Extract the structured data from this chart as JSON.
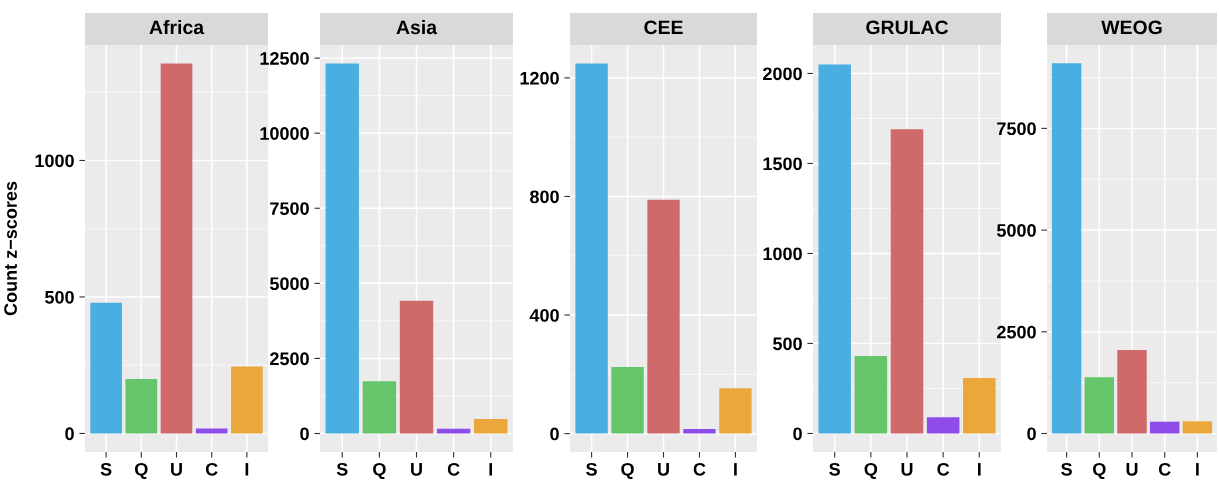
{
  "chart_data": [
    {
      "type": "bar",
      "title": "Africa",
      "ylabel": "Count z−scores",
      "categories": [
        "S",
        "Q",
        "U",
        "C",
        "I"
      ],
      "values": [
        479,
        199,
        1355,
        18,
        245
      ],
      "colors": [
        "#4aaee0",
        "#66c56a",
        "#d0696a",
        "#8e4de8",
        "#eba73b"
      ],
      "ylim": [
        -68,
        1423
      ],
      "yticks": [
        0,
        500,
        1000
      ],
      "grid": true
    },
    {
      "type": "bar",
      "title": "Asia",
      "categories": [
        "S",
        "Q",
        "U",
        "C",
        "I"
      ],
      "values": [
        12320,
        1740,
        4420,
        160,
        480
      ],
      "colors": [
        "#4aaee0",
        "#66c56a",
        "#d0696a",
        "#8e4de8",
        "#eba73b"
      ],
      "ylim": [
        -616,
        12936
      ],
      "yticks": [
        0,
        2500,
        5000,
        7500,
        10000,
        12500
      ],
      "grid": true
    },
    {
      "type": "bar",
      "title": "CEE",
      "categories": [
        "S",
        "Q",
        "U",
        "C",
        "I"
      ],
      "values": [
        1249,
        225,
        789,
        16,
        153
      ],
      "colors": [
        "#4aaee0",
        "#66c56a",
        "#d0696a",
        "#8e4de8",
        "#eba73b"
      ],
      "ylim": [
        -62,
        1311
      ],
      "yticks": [
        0,
        400,
        800,
        1200
      ],
      "grid": true
    },
    {
      "type": "bar",
      "title": "GRULAC",
      "categories": [
        "S",
        "Q",
        "U",
        "C",
        "I"
      ],
      "values": [
        2050,
        431,
        1690,
        90,
        308
      ],
      "colors": [
        "#4aaee0",
        "#66c56a",
        "#d0696a",
        "#8e4de8",
        "#eba73b"
      ],
      "ylim": [
        -103,
        2158
      ],
      "yticks": [
        0,
        500,
        1000,
        1500,
        2000
      ],
      "grid": true
    },
    {
      "type": "bar",
      "title": "WEOG",
      "categories": [
        "S",
        "Q",
        "U",
        "C",
        "I"
      ],
      "values": [
        9100,
        1380,
        2050,
        290,
        300
      ],
      "colors": [
        "#4aaee0",
        "#66c56a",
        "#d0696a",
        "#8e4de8",
        "#eba73b"
      ],
      "ylim": [
        -455,
        9550
      ],
      "yticks": [
        0,
        2500,
        5000,
        7500
      ],
      "grid": true
    }
  ]
}
